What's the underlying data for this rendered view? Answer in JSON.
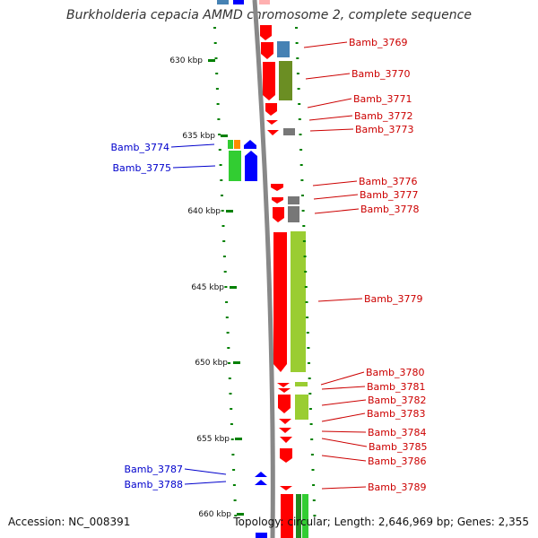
{
  "title": "Burkholderia cepacia AMMD chromosome 2, complete sequence",
  "footer": {
    "accession": "Accession: NC_008391",
    "summary": "Topology: circular; Length: 2,646,969 bp; Genes: 2,355"
  },
  "colors": {
    "forward_gene": "#ff0000",
    "reverse_gene": "#0000ff",
    "label_right": "#cc0000",
    "label_left": "#0000cc",
    "backbone": "#888888",
    "ticks": "#008000"
  },
  "scale": {
    "unit": "kbp",
    "ticks": [
      {
        "label": "630 kbp"
      },
      {
        "label": "635 kbp"
      },
      {
        "label": "640 kbp"
      },
      {
        "label": "645 kbp"
      },
      {
        "label": "650 kbp"
      },
      {
        "label": "655 kbp"
      },
      {
        "label": "660 kbp"
      }
    ]
  },
  "genes_right": [
    {
      "label": "Bamb_3769"
    },
    {
      "label": "Bamb_3770"
    },
    {
      "label": "Bamb_3771"
    },
    {
      "label": "Bamb_3772"
    },
    {
      "label": "Bamb_3773"
    },
    {
      "label": "Bamb_3776"
    },
    {
      "label": "Bamb_3777"
    },
    {
      "label": "Bamb_3778"
    },
    {
      "label": "Bamb_3779"
    },
    {
      "label": "Bamb_3780"
    },
    {
      "label": "Bamb_3781"
    },
    {
      "label": "Bamb_3782"
    },
    {
      "label": "Bamb_3783"
    },
    {
      "label": "Bamb_3784"
    },
    {
      "label": "Bamb_3785"
    },
    {
      "label": "Bamb_3786"
    },
    {
      "label": "Bamb_3789"
    }
  ],
  "genes_left": [
    {
      "label": "Bamb_3774"
    },
    {
      "label": "Bamb_3775"
    },
    {
      "label": "Bamb_3787"
    },
    {
      "label": "Bamb_3788"
    }
  ]
}
